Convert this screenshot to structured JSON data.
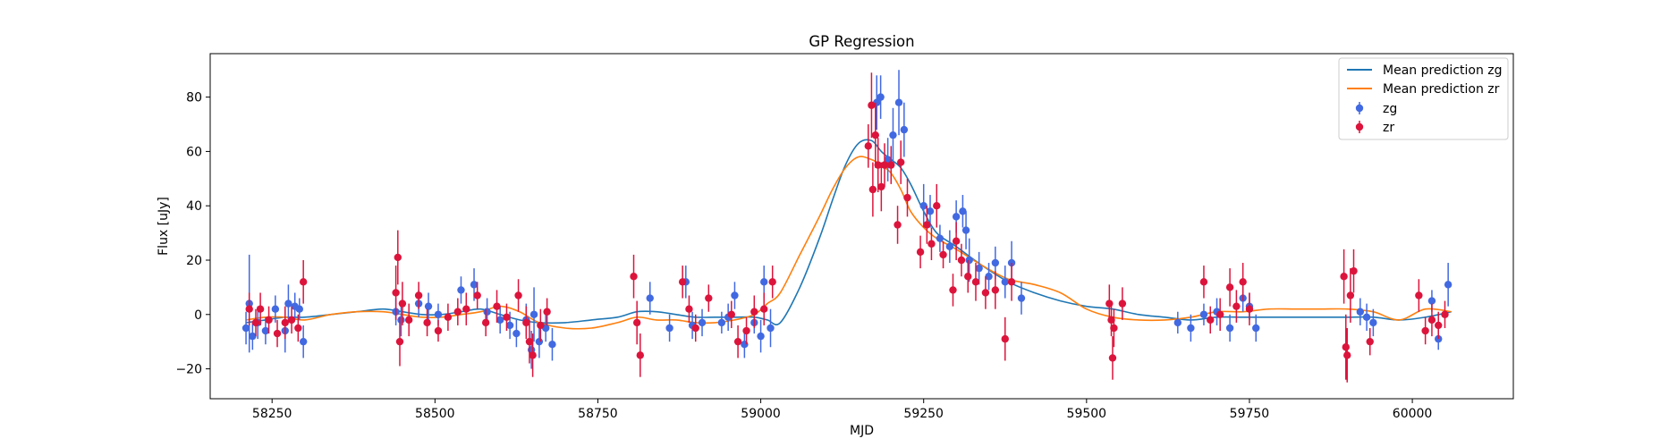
{
  "chart_data": {
    "type": "scatter",
    "title": "GP Regression",
    "xlabel": "MJD",
    "ylabel": "Flux [uJy]",
    "xlim": [
      58155,
      60155
    ],
    "ylim": [
      -31,
      96
    ],
    "xticks": [
      58250,
      58500,
      58750,
      59000,
      59250,
      59500,
      59750,
      60000
    ],
    "yticks": [
      -20,
      0,
      20,
      40,
      60,
      80
    ],
    "legend_position": "top-right",
    "lines": [
      {
        "name": "Mean prediction zg",
        "color": "#1f77b4",
        "x": [
          58210,
          58240,
          58270,
          58300,
          58340,
          58380,
          58420,
          58450,
          58480,
          58510,
          58540,
          58570,
          58600,
          58630,
          58660,
          58700,
          58740,
          58780,
          58810,
          58840,
          58870,
          58900,
          58930,
          58960,
          58990,
          59010,
          59030,
          59060,
          59090,
          59110,
          59130,
          59150,
          59170,
          59185,
          59200,
          59215,
          59230,
          59250,
          59270,
          59300,
          59340,
          59380,
          59420,
          59460,
          59500,
          59540,
          59580,
          59620,
          59660,
          59700,
          59740,
          59780,
          59820,
          59860,
          59900,
          59940,
          59980,
          60020,
          60060
        ],
        "y": [
          -3,
          -2,
          -1,
          -1,
          0,
          1,
          2,
          1,
          0,
          0,
          1,
          2,
          0,
          -2,
          -3,
          -3,
          -2,
          -1,
          1,
          1,
          0,
          -1,
          -1,
          -1,
          -1,
          -2,
          -3,
          10,
          28,
          42,
          55,
          63,
          64,
          60,
          57,
          54,
          48,
          38,
          30,
          25,
          18,
          12,
          8,
          5,
          3,
          2,
          0,
          -1,
          -2,
          -1,
          -1,
          -1,
          -1,
          -1,
          -1,
          -1,
          -2,
          -1,
          1
        ]
      },
      {
        "name": "Mean prediction zr",
        "color": "#ff7f0e",
        "x": [
          58210,
          58240,
          58270,
          58300,
          58340,
          58380,
          58420,
          58450,
          58480,
          58510,
          58540,
          58570,
          58600,
          58630,
          58660,
          58700,
          58740,
          58780,
          58810,
          58840,
          58870,
          58900,
          58930,
          58960,
          58990,
          59010,
          59030,
          59060,
          59090,
          59110,
          59130,
          59150,
          59170,
          59185,
          59200,
          59215,
          59230,
          59250,
          59270,
          59300,
          59340,
          59380,
          59420,
          59460,
          59500,
          59540,
          59580,
          59620,
          59660,
          59700,
          59740,
          59780,
          59820,
          59860,
          59900,
          59940,
          59980,
          60020,
          60060
        ],
        "y": [
          -2,
          -1,
          -1,
          -2,
          0,
          1,
          1,
          0,
          -1,
          -1,
          0,
          1,
          3,
          1,
          -3,
          -5,
          -5,
          -3,
          -1,
          -2,
          -2,
          -3,
          -3,
          -2,
          0,
          4,
          8,
          22,
          36,
          46,
          54,
          58,
          57,
          55,
          52,
          46,
          38,
          32,
          28,
          24,
          18,
          13,
          11,
          8,
          2,
          -1,
          -2,
          -2,
          -1,
          1,
          1,
          2,
          2,
          2,
          2,
          1,
          -2,
          2,
          1
        ]
      }
    ],
    "series": [
      {
        "name": "zg",
        "color": "#4169e1",
        "points": [
          [
            58210,
            -5,
            6
          ],
          [
            58215,
            4,
            18
          ],
          [
            58220,
            -8,
            5
          ],
          [
            58228,
            -3,
            6
          ],
          [
            58240,
            -6,
            5
          ],
          [
            58255,
            2,
            5
          ],
          [
            58270,
            -6,
            8
          ],
          [
            58275,
            4,
            7
          ],
          [
            58285,
            3,
            5
          ],
          [
            58292,
            2,
            4
          ],
          [
            58298,
            -10,
            6
          ],
          [
            58440,
            1,
            5
          ],
          [
            58448,
            -2,
            6
          ],
          [
            58475,
            4,
            5
          ],
          [
            58490,
            3,
            5
          ],
          [
            58505,
            0,
            4
          ],
          [
            58540,
            9,
            5
          ],
          [
            58560,
            11,
            6
          ],
          [
            58580,
            1,
            5
          ],
          [
            58600,
            -2,
            5
          ],
          [
            58615,
            -4,
            5
          ],
          [
            58625,
            -7,
            5
          ],
          [
            58640,
            -2,
            6
          ],
          [
            58648,
            -13,
            7
          ],
          [
            58652,
            0,
            10
          ],
          [
            58660,
            -10,
            6
          ],
          [
            58670,
            -5,
            5
          ],
          [
            58680,
            -11,
            6
          ],
          [
            58830,
            6,
            6
          ],
          [
            58860,
            -5,
            5
          ],
          [
            58885,
            12,
            6
          ],
          [
            58895,
            -4,
            5
          ],
          [
            58910,
            -3,
            5
          ],
          [
            58940,
            -3,
            4
          ],
          [
            58950,
            -1,
            5
          ],
          [
            58960,
            7,
            5
          ],
          [
            58975,
            -11,
            5
          ],
          [
            58990,
            -3,
            4
          ],
          [
            59000,
            -8,
            6
          ],
          [
            59005,
            12,
            6
          ],
          [
            59015,
            -5,
            7
          ],
          [
            59178,
            78,
            10
          ],
          [
            59184,
            80,
            8
          ],
          [
            59195,
            57,
            8
          ],
          [
            59203,
            66,
            10
          ],
          [
            59212,
            78,
            12
          ],
          [
            59220,
            68,
            10
          ],
          [
            59250,
            40,
            8
          ],
          [
            59260,
            38,
            6
          ],
          [
            59275,
            28,
            5
          ],
          [
            59290,
            25,
            6
          ],
          [
            59300,
            36,
            6
          ],
          [
            59310,
            38,
            6
          ],
          [
            59315,
            31,
            7
          ],
          [
            59320,
            20,
            8
          ],
          [
            59335,
            17,
            6
          ],
          [
            59350,
            14,
            5
          ],
          [
            59360,
            19,
            6
          ],
          [
            59375,
            12,
            6
          ],
          [
            59385,
            19,
            8
          ],
          [
            59400,
            6,
            6
          ],
          [
            59640,
            -3,
            4
          ],
          [
            59660,
            -5,
            5
          ],
          [
            59680,
            0,
            4
          ],
          [
            59700,
            1,
            5
          ],
          [
            59720,
            -5,
            5
          ],
          [
            59740,
            6,
            5
          ],
          [
            59750,
            3,
            5
          ],
          [
            59760,
            -5,
            5
          ],
          [
            59920,
            1,
            5
          ],
          [
            59930,
            -1,
            5
          ],
          [
            59940,
            -3,
            5
          ],
          [
            60030,
            5,
            4
          ],
          [
            60040,
            -9,
            4
          ],
          [
            60055,
            11,
            8
          ]
        ]
      },
      {
        "name": "zr",
        "color": "#dc143c",
        "points": [
          [
            58215,
            2,
            6
          ],
          [
            58225,
            -3,
            5
          ],
          [
            58232,
            2,
            6
          ],
          [
            58245,
            -2,
            5
          ],
          [
            58258,
            -7,
            5
          ],
          [
            58270,
            -3,
            6
          ],
          [
            58280,
            -2,
            5
          ],
          [
            58290,
            -5,
            5
          ],
          [
            58298,
            12,
            8
          ],
          [
            58440,
            8,
            10
          ],
          [
            58443,
            21,
            10
          ],
          [
            58446,
            -10,
            9
          ],
          [
            58450,
            4,
            8
          ],
          [
            58460,
            -2,
            6
          ],
          [
            58475,
            7,
            5
          ],
          [
            58488,
            -3,
            5
          ],
          [
            58505,
            -6,
            4
          ],
          [
            58520,
            -1,
            5
          ],
          [
            58535,
            1,
            5
          ],
          [
            58548,
            2,
            6
          ],
          [
            58565,
            7,
            5
          ],
          [
            58578,
            -3,
            5
          ],
          [
            58595,
            3,
            6
          ],
          [
            58610,
            -1,
            5
          ],
          [
            58628,
            7,
            6
          ],
          [
            58640,
            -3,
            6
          ],
          [
            58645,
            -10,
            8
          ],
          [
            58650,
            -15,
            8
          ],
          [
            58662,
            -4,
            6
          ],
          [
            58672,
            1,
            5
          ],
          [
            58805,
            14,
            8
          ],
          [
            58810,
            -3,
            8
          ],
          [
            58815,
            -15,
            8
          ],
          [
            58880,
            12,
            6
          ],
          [
            58890,
            2,
            5
          ],
          [
            58900,
            -5,
            5
          ],
          [
            58920,
            6,
            5
          ],
          [
            58955,
            0,
            5
          ],
          [
            58965,
            -10,
            6
          ],
          [
            58978,
            -6,
            5
          ],
          [
            58990,
            1,
            6
          ],
          [
            59005,
            2,
            6
          ],
          [
            59018,
            12,
            6
          ],
          [
            59165,
            62,
            8
          ],
          [
            59170,
            77,
            12
          ],
          [
            59172,
            46,
            10
          ],
          [
            59176,
            66,
            12
          ],
          [
            59180,
            55,
            10
          ],
          [
            59185,
            47,
            9
          ],
          [
            59190,
            55,
            8
          ],
          [
            59200,
            55,
            7
          ],
          [
            59210,
            33,
            7
          ],
          [
            59215,
            56,
            8
          ],
          [
            59225,
            43,
            7
          ],
          [
            59245,
            23,
            6
          ],
          [
            59255,
            33,
            7
          ],
          [
            59262,
            26,
            6
          ],
          [
            59270,
            40,
            8
          ],
          [
            59280,
            22,
            5
          ],
          [
            59295,
            9,
            6
          ],
          [
            59300,
            27,
            7
          ],
          [
            59308,
            20,
            6
          ],
          [
            59318,
            14,
            6
          ],
          [
            59330,
            12,
            7
          ],
          [
            59345,
            8,
            6
          ],
          [
            59360,
            9,
            7
          ],
          [
            59375,
            -9,
            8
          ],
          [
            59385,
            12,
            7
          ],
          [
            59535,
            4,
            7
          ],
          [
            59538,
            -2,
            6
          ],
          [
            59540,
            -16,
            8
          ],
          [
            59542,
            -5,
            7
          ],
          [
            59555,
            4,
            6
          ],
          [
            59680,
            12,
            6
          ],
          [
            59690,
            -2,
            5
          ],
          [
            59705,
            0,
            6
          ],
          [
            59720,
            10,
            7
          ],
          [
            59730,
            3,
            6
          ],
          [
            59740,
            12,
            7
          ],
          [
            59750,
            2,
            6
          ],
          [
            59895,
            14,
            10
          ],
          [
            59898,
            -12,
            12
          ],
          [
            59900,
            -15,
            10
          ],
          [
            59905,
            7,
            10
          ],
          [
            59910,
            16,
            8
          ],
          [
            59935,
            -10,
            5
          ],
          [
            60010,
            7,
            6
          ],
          [
            60020,
            -6,
            5
          ],
          [
            60030,
            -2,
            6
          ],
          [
            60040,
            -4,
            5
          ],
          [
            60050,
            0,
            5
          ]
        ]
      }
    ]
  }
}
